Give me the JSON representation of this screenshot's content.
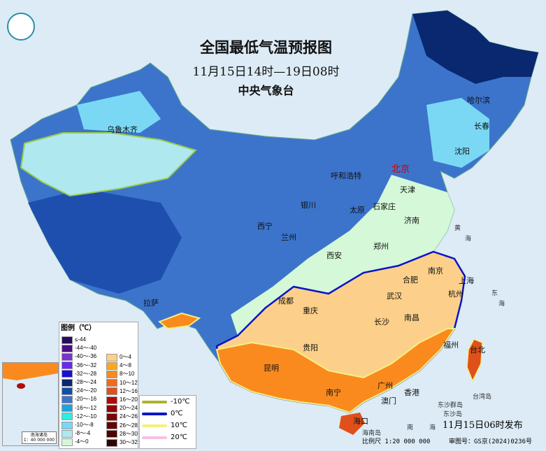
{
  "header": {
    "title": "全国最低气温预报图",
    "period": "11月15日14时—19日08时",
    "agency": "中央气象台"
  },
  "cities": [
    {
      "name": "北京",
      "capital": true
    },
    {
      "name": "乌鲁木齐"
    },
    {
      "name": "哈尔滨"
    },
    {
      "name": "长春"
    },
    {
      "name": "沈阳"
    },
    {
      "name": "呼和浩特"
    },
    {
      "name": "天津"
    },
    {
      "name": "银川"
    },
    {
      "name": "太原"
    },
    {
      "name": "石家庄"
    },
    {
      "name": "济南"
    },
    {
      "name": "西宁"
    },
    {
      "name": "兰州"
    },
    {
      "name": "郑州"
    },
    {
      "name": "西安"
    },
    {
      "name": "南京"
    },
    {
      "name": "上海"
    },
    {
      "name": "合肥"
    },
    {
      "name": "杭州"
    },
    {
      "name": "武汉"
    },
    {
      "name": "成都"
    },
    {
      "name": "重庆"
    },
    {
      "name": "拉萨"
    },
    {
      "name": "南昌"
    },
    {
      "name": "长沙"
    },
    {
      "name": "福州"
    },
    {
      "name": "台北"
    },
    {
      "name": "贵阳"
    },
    {
      "name": "昆明"
    },
    {
      "name": "广州"
    },
    {
      "name": "南宁"
    },
    {
      "name": "香港"
    },
    {
      "name": "澳门"
    },
    {
      "name": "海口"
    }
  ],
  "seas": [
    "黄",
    "海",
    "东",
    "海",
    "台湾岛",
    "东沙群岛",
    "东沙岛",
    "南",
    "海",
    "海南岛"
  ],
  "legend": {
    "title": "图例（℃）",
    "cold": [
      {
        "label": "≤-44",
        "color": "#2a0a5a"
      },
      {
        "label": "-44～-40",
        "color": "#4b0e8a"
      },
      {
        "label": "-40～-36",
        "color": "#7a33d0"
      },
      {
        "label": "-36～-32",
        "color": "#6a28f0"
      },
      {
        "label": "-32～-28",
        "color": "#1a10d8"
      },
      {
        "label": "-28～-24",
        "color": "#0a2870"
      },
      {
        "label": "-24～-20",
        "color": "#0f4fa8"
      },
      {
        "label": "-20～-16",
        "color": "#3c74cc"
      },
      {
        "label": "-16～-12",
        "color": "#1aa6dc"
      },
      {
        "label": "-12～-10",
        "color": "#2af0e0"
      },
      {
        "label": "-10～-8",
        "color": "#7ad8f4"
      },
      {
        "label": "-8～-4",
        "color": "#b0e8f0"
      },
      {
        "label": "-4～0",
        "color": "#d4f8d8"
      }
    ],
    "warm": [
      {
        "label": "0～4",
        "color": "#fcd08a"
      },
      {
        "label": "4～8",
        "color": "#fca81a"
      },
      {
        "label": "8～10",
        "color": "#fa8a1e"
      },
      {
        "label": "10～12",
        "color": "#f26a1a"
      },
      {
        "label": "12～16",
        "color": "#e0501a"
      },
      {
        "label": "16～20",
        "color": "#b00a0a"
      },
      {
        "label": "20～24",
        "color": "#900404"
      },
      {
        "label": "24～26",
        "color": "#7a0404"
      },
      {
        "label": "26～28",
        "color": "#620404"
      },
      {
        "label": "28～30",
        "color": "#4a0202"
      },
      {
        "label": "30～32",
        "color": "#300202"
      }
    ],
    "isolines": [
      {
        "label": "-10℃",
        "color": "#b0b030"
      },
      {
        "label": "0℃",
        "color": "#0a14c8"
      },
      {
        "label": "10℃",
        "color": "#f4f080"
      },
      {
        "label": "20℃",
        "color": "#f8c0e0"
      }
    ]
  },
  "inset": {
    "title": "南海诸岛",
    "scale": "1：40 000 000"
  },
  "footer": {
    "issued": "11月15日06时发布",
    "scale": "比例尺 1:20 000 000",
    "review": "审图号：GS京(2024)0236号"
  }
}
